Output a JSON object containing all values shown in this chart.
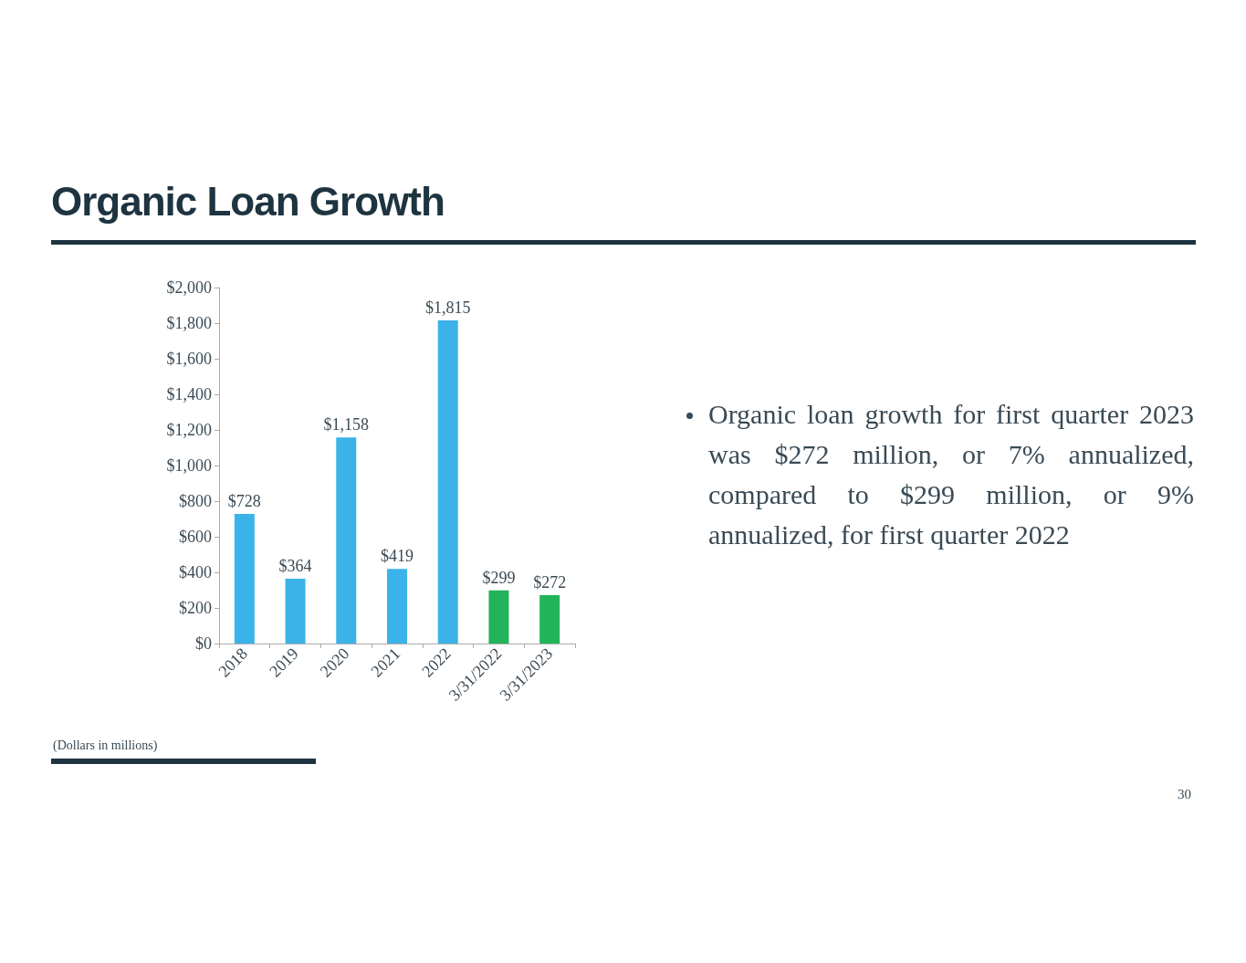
{
  "chart_data": {
    "type": "bar",
    "title": "Organic Loan Growth",
    "categories": [
      "2018",
      "2019",
      "2020",
      "2021",
      "2022",
      "3/31/2022",
      "3/31/2023"
    ],
    "values": [
      728,
      364,
      1158,
      419,
      1815,
      299,
      272
    ],
    "colors": [
      "#3bb3e8",
      "#3bb3e8",
      "#3bb3e8",
      "#3bb3e8",
      "#3bb3e8",
      "#22b45a",
      "#22b45a"
    ],
    "value_labels": [
      "$728",
      "$364",
      "$1,158",
      "$419",
      "$1,815",
      "$299",
      "$272"
    ],
    "ylim": [
      0,
      2000
    ],
    "yticks": [
      {
        "value": 0,
        "label": "$0"
      },
      {
        "value": 200,
        "label": "$200"
      },
      {
        "value": 400,
        "label": "$400"
      },
      {
        "value": 600,
        "label": "$600"
      },
      {
        "value": 800,
        "label": "$800"
      },
      {
        "value": 1000,
        "label": "$1,000"
      },
      {
        "value": 1200,
        "label": "$1,200"
      },
      {
        "value": 1400,
        "label": "$1,400"
      },
      {
        "value": 1600,
        "label": "$1,600"
      },
      {
        "value": 1800,
        "label": "$1,800"
      },
      {
        "value": 2000,
        "label": "$2,000"
      }
    ],
    "grid": false,
    "annotations": [
      "Organic loan growth for first quarter 2023 was $272 million, or 7% annualized,  compared to $299 million, or 9% annualized, for first quarter 2022",
      "(Dollars in millions)",
      "30"
    ]
  }
}
